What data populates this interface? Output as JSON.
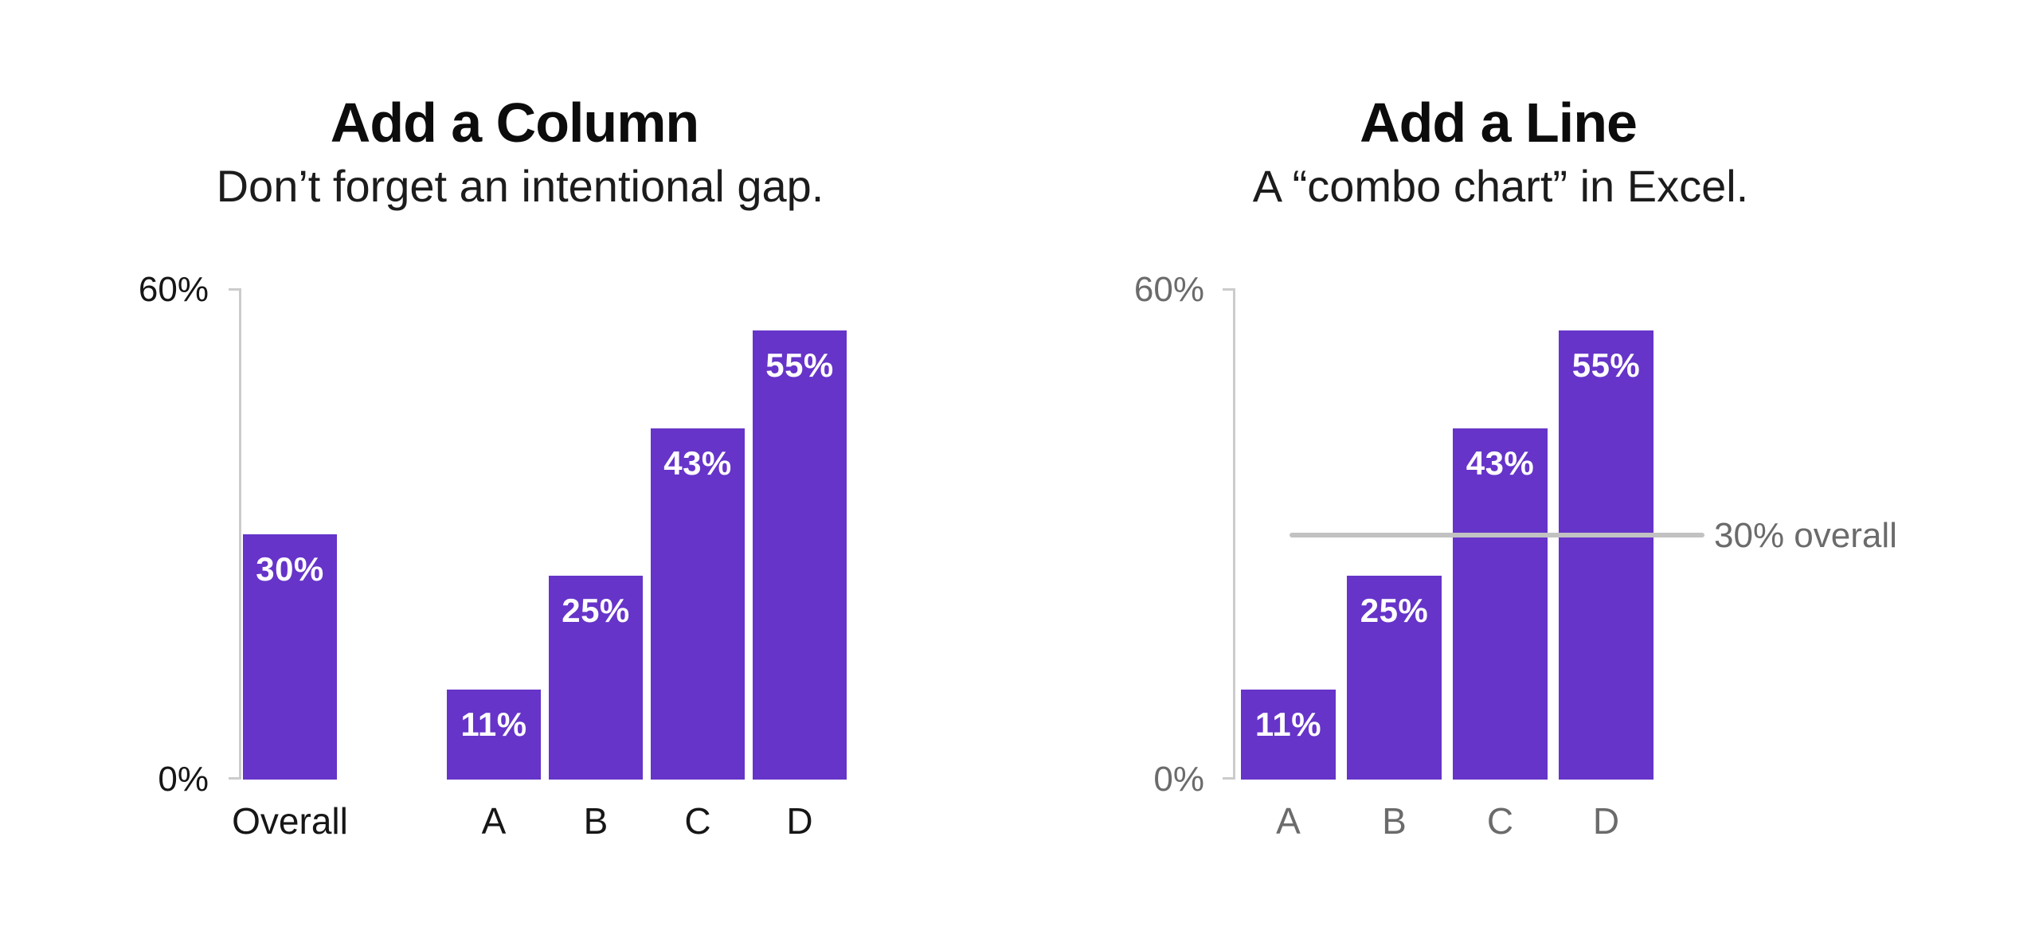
{
  "page": {
    "background_color": "#ffffff",
    "text_color_dark": "#161616",
    "text_color_gray": "#6b6b6b",
    "axis_color": "#cccccc"
  },
  "chart_data": [
    {
      "type": "bar",
      "title": "Add a Column",
      "subtitle": "Don’t forget an intentional gap.",
      "categories": [
        "Overall",
        "A",
        "B",
        "C",
        "D"
      ],
      "values": [
        30,
        11,
        25,
        43,
        55
      ],
      "bar_labels": [
        "30%",
        "11%",
        "25%",
        "43%",
        "55%"
      ],
      "ylim": [
        0,
        60
      ],
      "ytick_labels": [
        "0%",
        "60%"
      ],
      "grid": "off",
      "bar_color": "#6634c9",
      "value_label_color": "#ffffff",
      "axis_text_color": "#161616",
      "note": "Overall bar separated from A-D group by an intentional empty gap"
    },
    {
      "type": "bar",
      "title": "Add a Line",
      "subtitle": "A “combo chart” in Excel.",
      "categories": [
        "A",
        "B",
        "C",
        "D"
      ],
      "values": [
        11,
        25,
        43,
        55
      ],
      "bar_labels": [
        "11%",
        "25%",
        "43%",
        "55%"
      ],
      "ylim": [
        0,
        60
      ],
      "ytick_labels": [
        "0%",
        "60%"
      ],
      "grid": "off",
      "bar_color": "#6634c9",
      "value_label_color": "#ffffff",
      "axis_text_color": "#6b6b6b",
      "reference_line": {
        "value": 30,
        "label": "30% overall",
        "color": "#c2c2c2"
      }
    }
  ]
}
